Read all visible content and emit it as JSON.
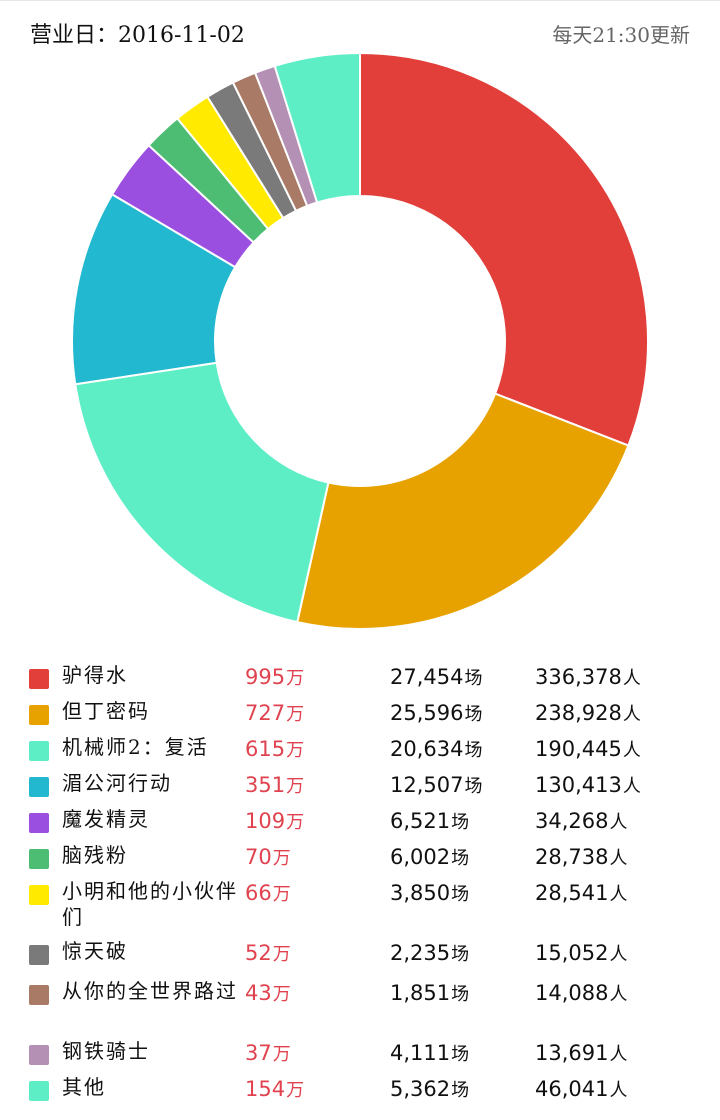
{
  "header": {
    "date_text": "营业日：2016-11-02",
    "update_text": "每天21:30更新"
  },
  "units": {
    "revenue": "万",
    "shows": "场",
    "audience": "人"
  },
  "chart_data": {
    "type": "pie",
    "donut": true,
    "categories": [
      "驴得水",
      "但丁密码",
      "机械师2：复活",
      "湄公河行动",
      "魔发精灵",
      "脑残粉",
      "小明和他的小伙伴们",
      "惊天破",
      "从你的全世界路过",
      "钢铁骑士",
      "其他"
    ],
    "values": [
      995,
      727,
      615,
      351,
      109,
      70,
      66,
      52,
      43,
      37,
      154
    ],
    "colors": [
      "#e23f3b",
      "#e8a200",
      "#5eeec6",
      "#22b8cf",
      "#9b4fe0",
      "#4dbd74",
      "#ffea00",
      "#7a7a7a",
      "#a97a66",
      "#b590b5",
      "#5eeec6"
    ],
    "rows": [
      {
        "name": "驴得水",
        "revenue": "995",
        "shows": "27,454",
        "audience": "336,378"
      },
      {
        "name": "但丁密码",
        "revenue": "727",
        "shows": "25,596",
        "audience": "238,928"
      },
      {
        "name": "机械师2：复活",
        "revenue": "615",
        "shows": "20,634",
        "audience": "190,445"
      },
      {
        "name": "湄公河行动",
        "revenue": "351",
        "shows": "12,507",
        "audience": "130,413"
      },
      {
        "name": "魔发精灵",
        "revenue": "109",
        "shows": "6,521",
        "audience": "34,268"
      },
      {
        "name": "脑残粉",
        "revenue": "70",
        "shows": "6,002",
        "audience": "28,738"
      },
      {
        "name": "小明和他的小伙伴们",
        "revenue": "66",
        "shows": "3,850",
        "audience": "28,541"
      },
      {
        "name": "惊天破",
        "revenue": "52",
        "shows": "2,235",
        "audience": "15,052"
      },
      {
        "name": "从你的全世界路过",
        "revenue": "43",
        "shows": "1,851",
        "audience": "14,088"
      },
      {
        "name": "钢铁骑士",
        "revenue": "37",
        "shows": "4,111",
        "audience": "13,691"
      },
      {
        "name": "其他",
        "revenue": "154",
        "shows": "5,362",
        "audience": "46,041"
      }
    ]
  }
}
